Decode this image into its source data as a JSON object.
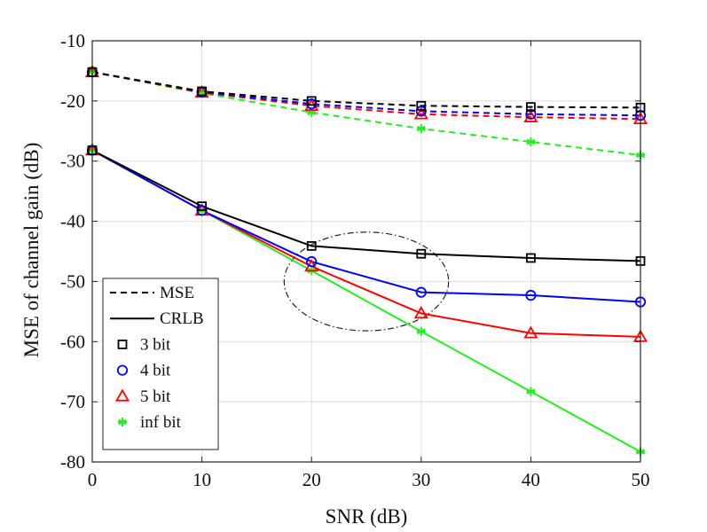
{
  "chart_data": {
    "type": "line",
    "xlabel": "SNR (dB)",
    "ylabel": "MSE of channel gain (dB)",
    "xlim": [
      0,
      50
    ],
    "ylim": [
      -80,
      -10
    ],
    "xticks": [
      0,
      10,
      20,
      30,
      40,
      50
    ],
    "yticks": [
      -10,
      -20,
      -30,
      -40,
      -50,
      -60,
      -70,
      -80
    ],
    "grid": true,
    "legend_position": "bottom-left",
    "x": [
      0,
      10,
      20,
      30,
      40,
      50
    ],
    "series": [
      {
        "name": "MSE 3 bit",
        "kind": "MSE",
        "bits": "3 bit",
        "color": "#000000",
        "marker": "square",
        "dashed": true,
        "values": [
          -15.2,
          -18.4,
          -20.0,
          -20.8,
          -21.0,
          -21.1
        ]
      },
      {
        "name": "MSE 4 bit",
        "kind": "MSE",
        "bits": "4 bit",
        "color": "#0000ff",
        "marker": "circle",
        "dashed": true,
        "values": [
          -15.2,
          -18.5,
          -20.5,
          -21.7,
          -22.2,
          -22.4
        ]
      },
      {
        "name": "MSE 5 bit",
        "kind": "MSE",
        "bits": "5 bit",
        "color": "#ff0000",
        "marker": "triangle",
        "dashed": true,
        "values": [
          -15.2,
          -18.6,
          -20.8,
          -22.2,
          -22.7,
          -23.0
        ]
      },
      {
        "name": "MSE inf bit",
        "kind": "MSE",
        "bits": "inf bit",
        "color": "#22ee22",
        "marker": "asterisk",
        "dashed": true,
        "values": [
          -15.2,
          -18.7,
          -21.9,
          -24.6,
          -26.8,
          -29.0
        ]
      },
      {
        "name": "CRLB 3 bit",
        "kind": "CRLB",
        "bits": "3 bit",
        "color": "#000000",
        "marker": "square",
        "dashed": false,
        "values": [
          -28.2,
          -37.5,
          -44.1,
          -45.4,
          -46.1,
          -46.6
        ]
      },
      {
        "name": "CRLB 4 bit",
        "kind": "CRLB",
        "bits": "4 bit",
        "color": "#0000ff",
        "marker": "circle",
        "dashed": false,
        "values": [
          -28.2,
          -38.2,
          -46.7,
          -51.8,
          -52.3,
          -53.4
        ]
      },
      {
        "name": "CRLB 5 bit",
        "kind": "CRLB",
        "bits": "5 bit",
        "color": "#ff0000",
        "marker": "triangle",
        "dashed": false,
        "values": [
          -28.2,
          -38.2,
          -47.5,
          -55.3,
          -58.6,
          -59.2
        ]
      },
      {
        "name": "CRLB inf bit",
        "kind": "CRLB",
        "bits": "inf bit",
        "color": "#22ee22",
        "marker": "asterisk",
        "dashed": false,
        "values": [
          -28.2,
          -38.2,
          -48.2,
          -58.3,
          -68.3,
          -78.3
        ]
      }
    ],
    "legend": [
      {
        "label": "MSE",
        "style": "dashed-line",
        "color": "#000000"
      },
      {
        "label": "CRLB",
        "style": "solid-line",
        "color": "#000000"
      },
      {
        "label": "3 bit",
        "style": "square",
        "color": "#000000"
      },
      {
        "label": "4 bit",
        "style": "circle",
        "color": "#0000ff"
      },
      {
        "label": "5 bit",
        "style": "triangle",
        "color": "#ff0000"
      },
      {
        "label": "inf bit",
        "style": "asterisk",
        "color": "#22ee22"
      }
    ],
    "annotation": {
      "type": "dash-dot-ellipse",
      "center": [
        25,
        -50
      ],
      "radius_x": 7.5,
      "radius_y": 8.2
    }
  }
}
